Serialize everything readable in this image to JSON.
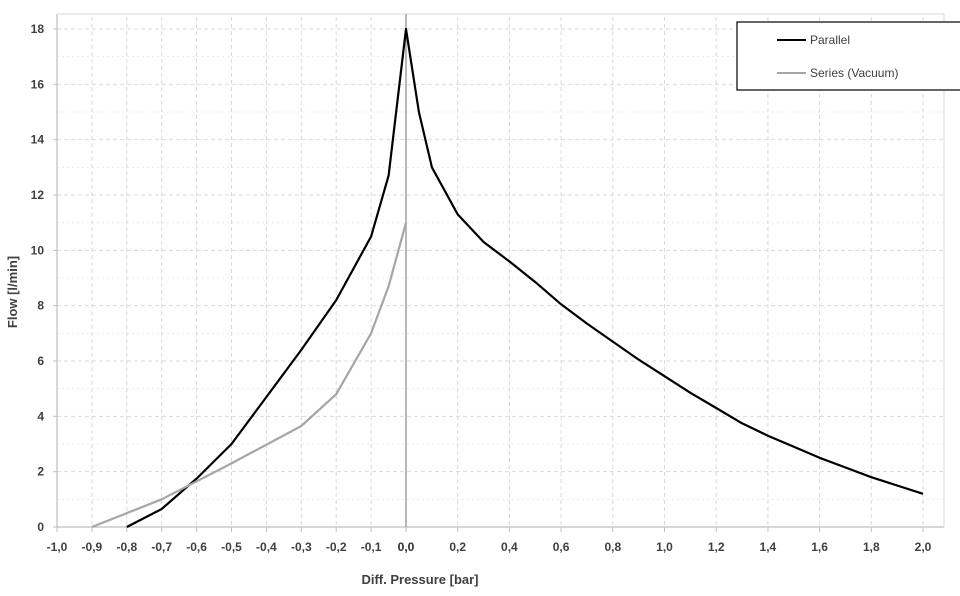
{
  "chart_data": {
    "type": "line",
    "title": "",
    "xlabel": "Diff. Pressure [bar]",
    "ylabel": "Flow [l/min]",
    "grid": true,
    "legend_position": "top-right",
    "negative_side": {
      "xlim": [
        -1.0,
        0.0
      ],
      "xticks": [
        "-1,0",
        "-0,9",
        "-0,8",
        "-0,7",
        "-0,6",
        "-0,5",
        "-0,4",
        "-0,3",
        "-0,2",
        "-0,1",
        "0,0"
      ]
    },
    "positive_side": {
      "xlim": [
        0.0,
        2.0
      ],
      "xticks": [
        "0,0",
        "0,2",
        "0,4",
        "0,6",
        "0,8",
        "1,0",
        "1,2",
        "1,4",
        "1,6",
        "1,8",
        "2,0"
      ]
    },
    "ylim": [
      0,
      18
    ],
    "yticks": [
      "0",
      "2",
      "4",
      "6",
      "8",
      "10",
      "12",
      "14",
      "16",
      "18"
    ],
    "series": [
      {
        "name": "Parallel",
        "color": "#000000",
        "x": [
          -0.8,
          -0.7,
          -0.6,
          -0.5,
          -0.4,
          -0.3,
          -0.2,
          -0.1,
          -0.05,
          0.0,
          0.05,
          0.1,
          0.2,
          0.3,
          0.4,
          0.5,
          0.6,
          0.7,
          0.8,
          0.9,
          1.0,
          1.1,
          1.2,
          1.3,
          1.4,
          1.5,
          1.6,
          1.7,
          1.8,
          1.9,
          2.0
        ],
        "y": [
          0,
          0.65,
          1.75,
          3.0,
          4.7,
          6.4,
          8.2,
          10.5,
          12.7,
          18.0,
          15.0,
          13.0,
          11.3,
          10.3,
          9.6,
          8.85,
          8.05,
          7.35,
          6.7,
          6.05,
          5.45,
          4.85,
          4.3,
          3.75,
          3.3,
          2.9,
          2.5,
          2.15,
          1.8,
          1.5,
          1.2
        ]
      },
      {
        "name": "Series (Vacuum)",
        "color": "#a6a6a6",
        "x": [
          -0.9,
          -0.7,
          -0.5,
          -0.3,
          -0.2,
          -0.1,
          -0.05,
          0.0
        ],
        "y": [
          0,
          1.0,
          2.3,
          3.65,
          4.8,
          7.0,
          8.7,
          11.0
        ]
      }
    ]
  }
}
